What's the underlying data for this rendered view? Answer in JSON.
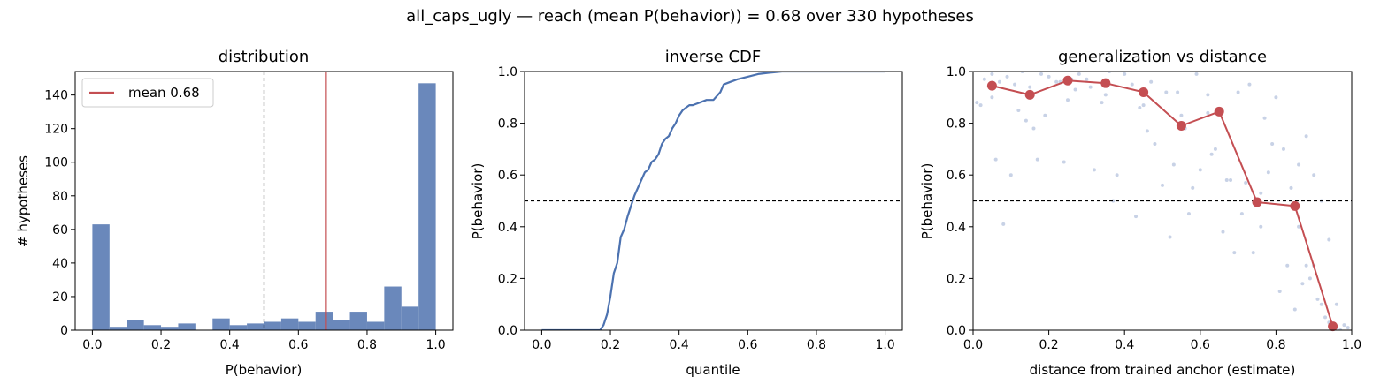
{
  "figure": {
    "suptitle": "all_caps_ugly  —  reach (mean P(behavior)) = 0.68  over 330 hypotheses"
  },
  "colors": {
    "bar": "#6a88bb",
    "line": "#4c72b0",
    "accent": "#c44e52",
    "scatter": "#c8d2e6"
  },
  "chart_data": [
    {
      "type": "bar",
      "title": "distribution",
      "xlabel": "P(behavior)",
      "ylabel": "# hypotheses",
      "xlim": [
        -0.05,
        1.05
      ],
      "ylim": [
        0,
        154
      ],
      "xticks": [
        0.0,
        0.2,
        0.4,
        0.6,
        0.8,
        1.0
      ],
      "xtick_labels": [
        "0.0",
        "0.2",
        "0.4",
        "0.6",
        "0.8",
        "1.0"
      ],
      "yticks": [
        0,
        20,
        40,
        60,
        80,
        100,
        120,
        140
      ],
      "ytick_labels": [
        "0",
        "20",
        "40",
        "60",
        "80",
        "100",
        "120",
        "140"
      ],
      "bin_width": 0.05,
      "bin_starts": [
        0.0,
        0.05,
        0.1,
        0.15,
        0.2,
        0.25,
        0.3,
        0.35,
        0.4,
        0.45,
        0.5,
        0.55,
        0.6,
        0.65,
        0.7,
        0.75,
        0.8,
        0.85,
        0.9,
        0.95
      ],
      "values": [
        63,
        2,
        6,
        3,
        2,
        4,
        0,
        7,
        3,
        4,
        5,
        7,
        5,
        11,
        6,
        11,
        5,
        26,
        14,
        147
      ],
      "threshold": 0.5,
      "mean": 0.68,
      "legend": {
        "label": "mean 0.68",
        "position": "top-left"
      },
      "grid": false
    },
    {
      "type": "line",
      "title": "inverse CDF",
      "xlabel": "quantile",
      "ylabel": "P(behavior)",
      "xlim": [
        -0.05,
        1.05
      ],
      "ylim": [
        0,
        1
      ],
      "xticks": [
        0.0,
        0.2,
        0.4,
        0.6,
        0.8,
        1.0
      ],
      "xtick_labels": [
        "0.0",
        "0.2",
        "0.4",
        "0.6",
        "0.8",
        "1.0"
      ],
      "yticks": [
        0.0,
        0.2,
        0.4,
        0.6,
        0.8,
        1.0
      ],
      "ytick_labels": [
        "0.0",
        "0.2",
        "0.4",
        "0.6",
        "0.8",
        "1.0"
      ],
      "threshold": 0.5,
      "x": [
        0.0,
        0.17,
        0.18,
        0.19,
        0.2,
        0.21,
        0.22,
        0.23,
        0.24,
        0.25,
        0.26,
        0.27,
        0.28,
        0.29,
        0.3,
        0.31,
        0.32,
        0.33,
        0.34,
        0.35,
        0.36,
        0.37,
        0.38,
        0.39,
        0.4,
        0.41,
        0.42,
        0.43,
        0.44,
        0.45,
        0.46,
        0.48,
        0.5,
        0.52,
        0.53,
        0.55,
        0.57,
        0.6,
        0.63,
        0.66,
        0.7,
        0.8,
        1.0
      ],
      "y": [
        0.0,
        0.0,
        0.02,
        0.06,
        0.13,
        0.22,
        0.26,
        0.36,
        0.39,
        0.44,
        0.48,
        0.52,
        0.55,
        0.58,
        0.61,
        0.62,
        0.65,
        0.66,
        0.68,
        0.72,
        0.74,
        0.75,
        0.78,
        0.8,
        0.83,
        0.85,
        0.86,
        0.87,
        0.87,
        0.875,
        0.88,
        0.89,
        0.89,
        0.92,
        0.95,
        0.96,
        0.97,
        0.98,
        0.99,
        0.995,
        1.0,
        1.0,
        1.0
      ],
      "grid": false
    },
    {
      "type": "scatter",
      "title": "generalization vs distance",
      "xlabel": "distance from trained anchor (estimate)",
      "ylabel": "P(behavior)",
      "xlim": [
        0,
        1
      ],
      "ylim": [
        0,
        1
      ],
      "xticks": [
        0.0,
        0.2,
        0.4,
        0.6,
        0.8,
        1.0
      ],
      "xtick_labels": [
        "0.0",
        "0.2",
        "0.4",
        "0.6",
        "0.8",
        "1.0"
      ],
      "yticks": [
        0.0,
        0.2,
        0.4,
        0.6,
        0.8,
        1.0
      ],
      "ytick_labels": [
        "0.0",
        "0.2",
        "0.4",
        "0.6",
        "0.8",
        "1.0"
      ],
      "threshold": 0.5,
      "binned_means": {
        "x": [
          0.05,
          0.15,
          0.25,
          0.35,
          0.45,
          0.55,
          0.65,
          0.75,
          0.85,
          0.95
        ],
        "y": [
          0.945,
          0.91,
          0.965,
          0.955,
          0.92,
          0.79,
          0.845,
          0.495,
          0.48,
          0.015
        ]
      },
      "points": {
        "x": [
          0.01,
          0.03,
          0.05,
          0.07,
          0.09,
          0.11,
          0.13,
          0.02,
          0.06,
          0.1,
          0.14,
          0.16,
          0.18,
          0.2,
          0.22,
          0.24,
          0.26,
          0.28,
          0.19,
          0.23,
          0.27,
          0.3,
          0.32,
          0.34,
          0.36,
          0.38,
          0.4,
          0.42,
          0.44,
          0.46,
          0.48,
          0.5,
          0.52,
          0.54,
          0.56,
          0.58,
          0.6,
          0.62,
          0.64,
          0.66,
          0.68,
          0.7,
          0.72,
          0.74,
          0.76,
          0.78,
          0.8,
          0.82,
          0.84,
          0.86,
          0.88,
          0.9,
          0.92,
          0.94,
          0.96,
          0.98,
          0.08,
          0.12,
          0.17,
          0.31,
          0.37,
          0.43,
          0.47,
          0.51,
          0.53,
          0.57,
          0.59,
          0.63,
          0.67,
          0.69,
          0.71,
          0.73,
          0.77,
          0.79,
          0.81,
          0.83,
          0.85,
          0.87,
          0.89,
          0.91,
          0.93,
          0.95,
          0.97,
          0.99,
          0.9,
          0.92,
          0.94,
          0.96,
          0.88,
          0.86,
          0.76,
          0.62,
          0.55,
          0.45,
          0.35,
          0.25,
          0.15,
          0.05
        ],
        "y": [
          0.88,
          0.97,
          0.99,
          0.96,
          0.98,
          0.95,
          1.0,
          0.87,
          0.66,
          0.6,
          0.81,
          0.78,
          0.99,
          0.98,
          0.96,
          0.65,
          0.97,
          0.99,
          0.83,
          0.96,
          0.93,
          0.97,
          0.62,
          0.88,
          1.0,
          0.6,
          0.99,
          0.95,
          0.86,
          0.77,
          0.72,
          0.56,
          0.36,
          0.92,
          0.78,
          0.55,
          0.62,
          0.84,
          0.7,
          0.38,
          0.58,
          0.92,
          0.57,
          0.3,
          0.53,
          0.61,
          0.9,
          0.7,
          0.55,
          0.4,
          0.25,
          0.25,
          0.1,
          0.03,
          0.01,
          0.02,
          0.41,
          0.85,
          0.66,
          0.94,
          0.5,
          0.44,
          0.96,
          0.92,
          0.64,
          0.45,
          0.99,
          0.68,
          0.58,
          0.3,
          0.45,
          0.95,
          0.82,
          0.72,
          0.15,
          0.25,
          0.08,
          0.18,
          0.2,
          0.12,
          0.05,
          0.02,
          0.0,
          0.01,
          0.6,
          0.5,
          0.35,
          0.1,
          0.75,
          0.64,
          0.4,
          0.91,
          0.83,
          0.87,
          0.91,
          0.89,
          0.94,
          0.9
        ]
      },
      "grid": false
    }
  ]
}
